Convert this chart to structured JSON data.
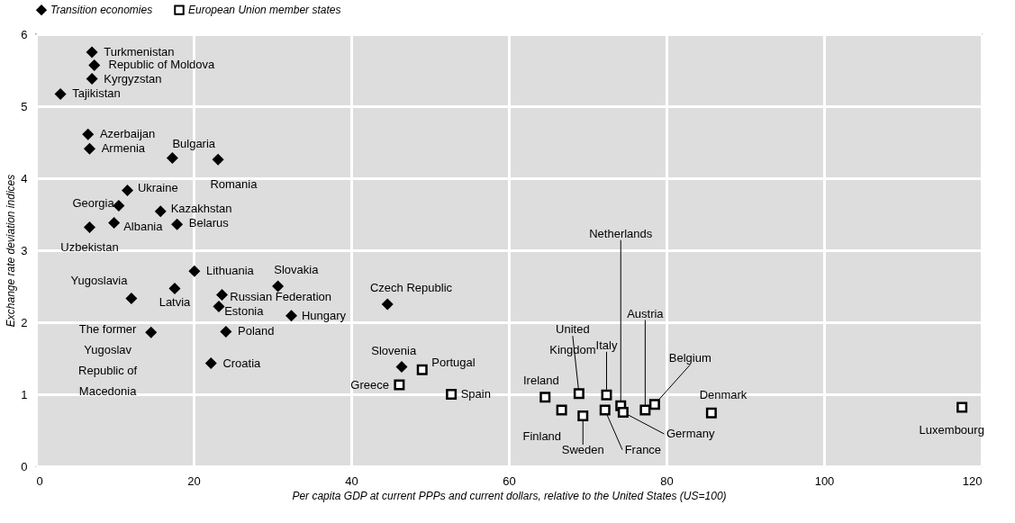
{
  "chart_data": {
    "type": "scatter",
    "xlabel": "Per capita GDP at current PPPs and current dollars, relative to the United States (US=100)",
    "ylabel": "Exchange rate deviation indices",
    "xlim": [
      0,
      120
    ],
    "xticks": [
      0,
      20,
      40,
      60,
      80,
      100,
      120
    ],
    "ylim": [
      0,
      6
    ],
    "yticks": [
      0,
      1,
      2,
      3,
      4,
      5,
      6
    ],
    "grid": true,
    "legend": "top",
    "series": [
      {
        "name": "Transition economies",
        "color": "#000000",
        "marker": "diamond",
        "x": [
          7.1,
          7.4,
          7.1,
          3.1,
          6.6,
          6.8,
          17.3,
          23.1,
          11.6,
          10.5,
          15.8,
          9.9,
          17.9,
          6.8,
          20.1,
          30.7,
          12.1,
          17.6,
          23.6,
          23.2,
          32.4,
          44.6,
          24.1,
          22.2,
          14.6,
          46.4
        ],
        "values": [
          5.75,
          5.57,
          5.38,
          5.17,
          4.61,
          4.41,
          4.28,
          4.26,
          3.83,
          3.62,
          3.54,
          3.38,
          3.36,
          3.32,
          2.71,
          2.5,
          2.33,
          2.47,
          2.38,
          2.22,
          2.09,
          2.25,
          1.87,
          1.43,
          1.86,
          1.38
        ]
      },
      {
        "name": "European Union member states",
        "color": "#000000",
        "marker": "square",
        "x": [
          49.0,
          46.1,
          52.7,
          64.6,
          66.7,
          68.9,
          69.4,
          72.4,
          72.2,
          74.2,
          74.5,
          77.3,
          78.5,
          85.7,
          117.5
        ],
        "values": [
          1.34,
          1.13,
          1.0,
          0.96,
          0.78,
          1.01,
          0.7,
          0.99,
          0.78,
          0.84,
          0.75,
          0.78,
          0.86,
          0.74,
          0.82
        ]
      }
    ],
    "annotations": [
      {
        "text": "Turkmenistan",
        "x": 7.1,
        "y": 5.75
      },
      {
        "text": "Republic of Moldova",
        "x": 7.4,
        "y": 5.57
      },
      {
        "text": "Kyrgyzstan",
        "x": 7.1,
        "y": 5.38
      },
      {
        "text": "Tajikistan",
        "x": 3.1,
        "y": 5.17
      },
      {
        "text": "Azerbaijan",
        "x": 6.6,
        "y": 4.61
      },
      {
        "text": "Armenia",
        "x": 6.8,
        "y": 4.41
      },
      {
        "text": "Bulgaria",
        "x": 17.3,
        "y": 4.28
      },
      {
        "text": "Romania",
        "x": 23.1,
        "y": 4.26
      },
      {
        "text": "Ukraine",
        "x": 11.6,
        "y": 3.83
      },
      {
        "text": "Georgia",
        "x": 10.5,
        "y": 3.62
      },
      {
        "text": "Kazakhstan",
        "x": 15.8,
        "y": 3.54
      },
      {
        "text": "Albania",
        "x": 9.9,
        "y": 3.38
      },
      {
        "text": "Belarus",
        "x": 17.9,
        "y": 3.36
      },
      {
        "text": "Uzbekistan",
        "x": 6.8,
        "y": 3.32
      },
      {
        "text": "Lithuania",
        "x": 20.1,
        "y": 2.71
      },
      {
        "text": "Slovakia",
        "x": 30.7,
        "y": 2.5
      },
      {
        "text": "Yugoslavia",
        "x": 12.1,
        "y": 2.33
      },
      {
        "text": "Latvia",
        "x": 17.6,
        "y": 2.47
      },
      {
        "text": "Russian Federation",
        "x": 23.6,
        "y": 2.38
      },
      {
        "text": "Estonia",
        "x": 23.2,
        "y": 2.22
      },
      {
        "text": "Hungary",
        "x": 32.4,
        "y": 2.09
      },
      {
        "text": "Czech Republic",
        "x": 44.6,
        "y": 2.25
      },
      {
        "text": "Poland",
        "x": 24.1,
        "y": 1.87
      },
      {
        "text": "Croatia",
        "x": 22.2,
        "y": 1.43
      },
      {
        "text": "The former\nYugoslav\nRepublic of\nMacedonia",
        "x": 14.6,
        "y": 1.86
      },
      {
        "text": "Slovenia",
        "x": 46.4,
        "y": 1.38
      },
      {
        "text": "Portugal",
        "x": 49.0,
        "y": 1.34
      },
      {
        "text": "Greece",
        "x": 46.1,
        "y": 1.13
      },
      {
        "text": "Spain",
        "x": 52.7,
        "y": 1.0
      },
      {
        "text": "Ireland",
        "x": 64.6,
        "y": 0.96
      },
      {
        "text": "Finland",
        "x": 66.7,
        "y": 0.78
      },
      {
        "text": "United\nKingdom",
        "x": 68.9,
        "y": 1.01
      },
      {
        "text": "Sweden",
        "x": 69.4,
        "y": 0.7
      },
      {
        "text": "Italy",
        "x": 72.4,
        "y": 0.99
      },
      {
        "text": "France",
        "x": 72.2,
        "y": 0.78
      },
      {
        "text": "Netherlands",
        "x": 74.2,
        "y": 0.84
      },
      {
        "text": "Germany",
        "x": 74.5,
        "y": 0.75
      },
      {
        "text": "Austria",
        "x": 77.3,
        "y": 0.78
      },
      {
        "text": "Belgium",
        "x": 78.5,
        "y": 0.86
      },
      {
        "text": "Denmark",
        "x": 85.7,
        "y": 0.74
      },
      {
        "text": "Luxembourg",
        "x": 117.5,
        "y": 0.82
      }
    ]
  }
}
